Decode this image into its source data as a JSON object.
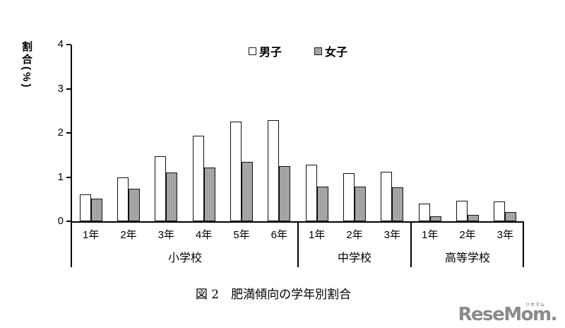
{
  "colors": {
    "boys_fill": "#ffffff",
    "girls_fill": "#a6a6a6",
    "bar_border": "#111111",
    "axis": "#000000",
    "logo_gray": "#8a8a8a"
  },
  "chart_data": {
    "type": "bar",
    "title": "",
    "ylabel": "割合(%)",
    "ylim": [
      0,
      4
    ],
    "yticks": [
      0,
      1,
      2,
      3,
      4
    ],
    "grid": false,
    "legend_position": "top-center",
    "categories": [
      "1年",
      "2年",
      "3年",
      "4年",
      "5年",
      "6年",
      "1年",
      "2年",
      "3年",
      "1年",
      "2年",
      "3年"
    ],
    "sections": [
      {
        "label": "小学校",
        "span": 6
      },
      {
        "label": "中学校",
        "span": 3
      },
      {
        "label": "高等学校",
        "span": 3
      }
    ],
    "series": [
      {
        "name": "男子",
        "fill": "#ffffff",
        "values": [
          0.61,
          0.99,
          1.47,
          1.93,
          2.25,
          2.29,
          1.28,
          1.08,
          1.12,
          0.4,
          0.46,
          0.45
        ]
      },
      {
        "name": "女子",
        "fill": "#a6a6a6",
        "values": [
          0.51,
          0.74,
          1.1,
          1.21,
          1.34,
          1.24,
          0.79,
          0.79,
          0.77,
          0.11,
          0.15,
          0.2
        ]
      }
    ]
  },
  "caption": "図 2　肥満傾向の学年別割合",
  "logo": {
    "text": "ReseMom.",
    "ruby": "リセマム"
  }
}
